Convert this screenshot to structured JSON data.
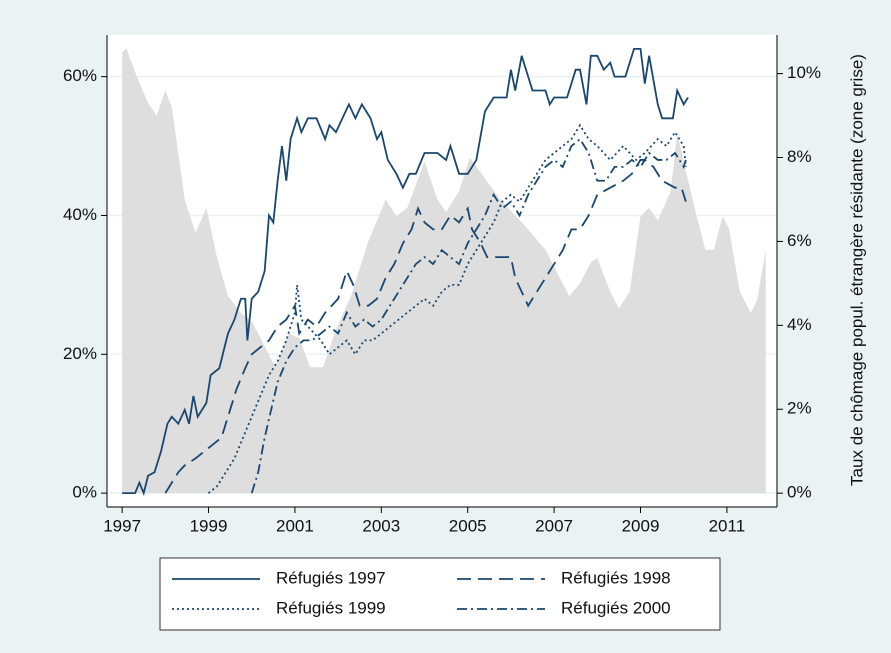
{
  "chart_data": {
    "type": "line",
    "xlim": [
      1996.65,
      2012.16
    ],
    "xticks": [
      1997,
      1999,
      2001,
      2003,
      2005,
      2007,
      2009,
      2011
    ],
    "ylim": [
      -2,
      66
    ],
    "yticks": [
      {
        "value": 0,
        "label": "0%"
      },
      {
        "value": 20,
        "label": "20%"
      },
      {
        "value": 40,
        "label": "40%"
      },
      {
        "value": 60,
        "label": "60%"
      }
    ],
    "y2lim": [
      -0.33,
      10.92
    ],
    "y2ticks": [
      {
        "value": 0,
        "label": "0%"
      },
      {
        "value": 2,
        "label": "2%"
      },
      {
        "value": 4,
        "label": "4%"
      },
      {
        "value": 6,
        "label": "6%"
      },
      {
        "value": 8,
        "label": "8%"
      },
      {
        "value": 10,
        "label": "10%"
      }
    ],
    "y2label": "Taux de chômage popul. étrangère résidante (zone grise)",
    "grid": true,
    "legend": "bottom",
    "series": [
      {
        "style": "area",
        "axis": "y2",
        "color": "#dedede",
        "x": [
          1997.0,
          1997.1,
          1997.35,
          1997.6,
          1997.8,
          1998.0,
          1998.15,
          1998.45,
          1998.7,
          1998.95,
          1999.2,
          1999.45,
          1999.75,
          2000.0,
          2000.3,
          2000.55,
          2000.85,
          2001.1,
          2001.35,
          2001.65,
          2001.95,
          2002.3,
          2002.7,
          2003.1,
          2003.35,
          2003.6,
          2004.0,
          2004.3,
          2004.5,
          2004.8,
          2005.05,
          2005.4,
          2005.75,
          2006.3,
          2006.8,
          2007.1,
          2007.35,
          2007.6,
          2007.85,
          2008.0,
          2008.3,
          2008.5,
          2008.75,
          2009.0,
          2009.2,
          2009.4,
          2009.7,
          2009.85,
          2010.0,
          2010.25,
          2010.5,
          2010.7,
          2010.9,
          2011.05,
          2011.3,
          2011.55,
          2011.7,
          2011.9
        ],
        "values": [
          10.5,
          10.6,
          9.9,
          9.3,
          9.0,
          9.6,
          9.2,
          7.0,
          6.2,
          6.8,
          5.6,
          4.7,
          4.3,
          4.1,
          3.5,
          3.0,
          3.8,
          3.7,
          3.0,
          3.0,
          3.9,
          4.7,
          6.0,
          7.0,
          6.6,
          6.8,
          7.9,
          7.0,
          6.7,
          7.2,
          8.0,
          7.5,
          7.0,
          6.4,
          5.8,
          5.2,
          4.7,
          5.0,
          5.5,
          5.6,
          4.8,
          4.4,
          4.8,
          6.6,
          6.8,
          6.5,
          7.2,
          8.6,
          7.9,
          6.8,
          5.8,
          5.8,
          6.6,
          6.3,
          4.8,
          4.3,
          4.6,
          5.8
        ]
      },
      {
        "name": "Réfugiés 1997",
        "style": "solid",
        "color": "#1a476f",
        "x": [
          1997.0,
          1997.3,
          1997.4,
          1997.5,
          1997.6,
          1997.75,
          1997.9,
          1998.05,
          1998.15,
          1998.3,
          1998.45,
          1998.55,
          1998.65,
          1998.75,
          1998.95,
          1999.05,
          1999.25,
          1999.45,
          1999.6,
          1999.75,
          1999.85,
          1999.9,
          2000.0,
          2000.15,
          2000.3,
          2000.4,
          2000.5,
          2000.6,
          2000.7,
          2000.8,
          2000.9,
          2001.05,
          2001.15,
          2001.3,
          2001.5,
          2001.7,
          2001.8,
          2001.95,
          2002.1,
          2002.25,
          2002.4,
          2002.55,
          2002.75,
          2002.9,
          2003.0,
          2003.15,
          2003.35,
          2003.5,
          2003.65,
          2003.8,
          2004.0,
          2004.3,
          2004.5,
          2004.6,
          2004.8,
          2005.0,
          2005.2,
          2005.4,
          2005.6,
          2005.9,
          2006.0,
          2006.1,
          2006.25,
          2006.35,
          2006.5,
          2006.8,
          2006.9,
          2007.0,
          2007.3,
          2007.5,
          2007.6,
          2007.75,
          2007.85,
          2008.0,
          2008.15,
          2008.3,
          2008.4,
          2008.65,
          2008.85,
          2009.0,
          2009.1,
          2009.2,
          2009.4,
          2009.5,
          2009.75,
          2009.85,
          2010.0,
          2010.1
        ],
        "values": [
          0,
          0,
          1.5,
          0,
          2.5,
          3,
          6,
          10,
          11,
          10,
          12,
          10,
          14,
          11,
          13,
          17,
          18,
          23,
          25,
          28,
          28,
          22,
          28,
          29,
          32,
          40,
          39,
          45,
          50,
          45,
          51,
          54,
          52,
          54,
          54,
          51,
          53,
          52,
          54,
          56,
          54,
          56,
          54,
          51,
          52,
          48,
          46,
          44,
          46,
          46,
          49,
          49,
          48,
          50,
          46,
          46,
          48,
          55,
          57,
          57,
          61,
          58,
          63,
          61,
          58,
          58,
          56,
          57,
          57,
          61,
          61,
          56,
          63,
          63,
          61,
          62,
          60,
          60,
          64,
          64,
          59,
          63,
          56,
          54,
          54,
          58,
          56,
          57
        ]
      },
      {
        "name": "Réfugiés 1998",
        "style": "dash",
        "color": "#1a476f",
        "x": [
          1998.0,
          1998.3,
          1998.45,
          1998.7,
          1998.9,
          1999.1,
          1999.3,
          1999.5,
          1999.65,
          1999.85,
          2000.0,
          2000.2,
          2000.4,
          2000.6,
          2000.8,
          2001.0,
          2001.1,
          2001.3,
          2001.5,
          2001.7,
          2001.85,
          2002.0,
          2002.2,
          2002.35,
          2002.5,
          2002.7,
          2002.9,
          2003.1,
          2003.3,
          2003.5,
          2003.7,
          2003.85,
          2004.0,
          2004.2,
          2004.4,
          2004.6,
          2004.8,
          2005.0,
          2005.1,
          2005.3,
          2005.45,
          2005.7,
          2006.0,
          2006.1,
          2006.25,
          2006.4,
          2006.6,
          2006.8,
          2007.0,
          2007.2,
          2007.4,
          2007.6,
          2007.8,
          2008.0,
          2008.3,
          2008.6,
          2008.8,
          2009.0,
          2009.1,
          2009.3,
          2009.5,
          2009.8,
          2009.95,
          2010.05
        ],
        "values": [
          0,
          3,
          4,
          5,
          6,
          7,
          8,
          12,
          15,
          18,
          20,
          21,
          22,
          24,
          25,
          27,
          23,
          25,
          24,
          26,
          27,
          28,
          32,
          30,
          27,
          27,
          28,
          31,
          33,
          36,
          38,
          41,
          39,
          38,
          38,
          40,
          39,
          41,
          38,
          36,
          34,
          34,
          34,
          31,
          29,
          27,
          29,
          31,
          33,
          35,
          38,
          38,
          40,
          43,
          44,
          45,
          46,
          48,
          48,
          47,
          45,
          44,
          44,
          42
        ]
      },
      {
        "name": "Réfugiés 1999",
        "style": "dot",
        "color": "#1a476f",
        "x": [
          1999.0,
          1999.2,
          1999.4,
          1999.6,
          1999.8,
          2000.0,
          2000.2,
          2000.4,
          2000.6,
          2000.8,
          2001.0,
          2001.05,
          2001.15,
          2001.3,
          2001.6,
          2001.8,
          2002.0,
          2002.2,
          2002.4,
          2002.6,
          2002.8,
          2003.0,
          2003.2,
          2003.4,
          2003.6,
          2003.8,
          2004.0,
          2004.2,
          2004.4,
          2004.6,
          2004.8,
          2005.0,
          2005.2,
          2005.4,
          2005.6,
          2005.8,
          2006.0,
          2006.2,
          2006.4,
          2006.6,
          2006.8,
          2007.0,
          2007.2,
          2007.4,
          2007.6,
          2007.8,
          2008.0,
          2008.3,
          2008.6,
          2008.9,
          2009.1,
          2009.4,
          2009.6,
          2009.8,
          2010.0,
          2010.05
        ],
        "values": [
          0,
          1,
          3,
          5,
          8,
          11,
          14,
          17,
          19,
          22,
          26,
          30,
          25,
          24,
          22,
          20,
          21,
          22,
          20,
          22,
          22,
          23,
          24,
          25,
          26,
          27,
          28,
          27,
          29,
          30,
          30,
          33,
          35,
          37,
          39,
          42,
          43,
          42,
          44,
          46,
          48,
          49,
          50,
          51,
          53,
          51,
          50,
          48,
          50,
          48,
          49,
          51,
          50,
          52,
          50,
          47
        ]
      },
      {
        "name": "Réfugiés 2000",
        "style": "dashdot",
        "color": "#1a476f",
        "x": [
          2000.0,
          2000.15,
          2000.3,
          2000.45,
          2000.6,
          2000.8,
          2001.0,
          2001.2,
          2001.4,
          2001.6,
          2001.8,
          2002.0,
          2002.2,
          2002.4,
          2002.6,
          2002.8,
          2003.0,
          2003.2,
          2003.4,
          2003.6,
          2003.8,
          2004.0,
          2004.2,
          2004.4,
          2004.6,
          2004.8,
          2005.0,
          2005.2,
          2005.4,
          2005.6,
          2005.8,
          2006.0,
          2006.2,
          2006.4,
          2006.6,
          2006.8,
          2007.0,
          2007.2,
          2007.4,
          2007.6,
          2007.8,
          2008.0,
          2008.2,
          2008.4,
          2008.6,
          2008.8,
          2009.0,
          2009.2,
          2009.4,
          2009.6,
          2009.8,
          2010.0,
          2010.05
        ],
        "values": [
          0,
          3,
          8,
          12,
          16,
          19,
          21,
          22,
          22,
          23,
          24,
          23,
          26,
          24,
          25,
          24,
          25,
          27,
          29,
          31,
          33,
          34,
          33,
          35,
          34,
          33,
          36,
          38,
          40,
          43,
          41,
          42,
          40,
          43,
          45,
          47,
          48,
          47,
          50,
          51,
          49,
          45,
          45,
          47,
          47,
          48,
          47,
          49,
          48,
          48,
          49,
          47,
          48
        ]
      }
    ]
  }
}
